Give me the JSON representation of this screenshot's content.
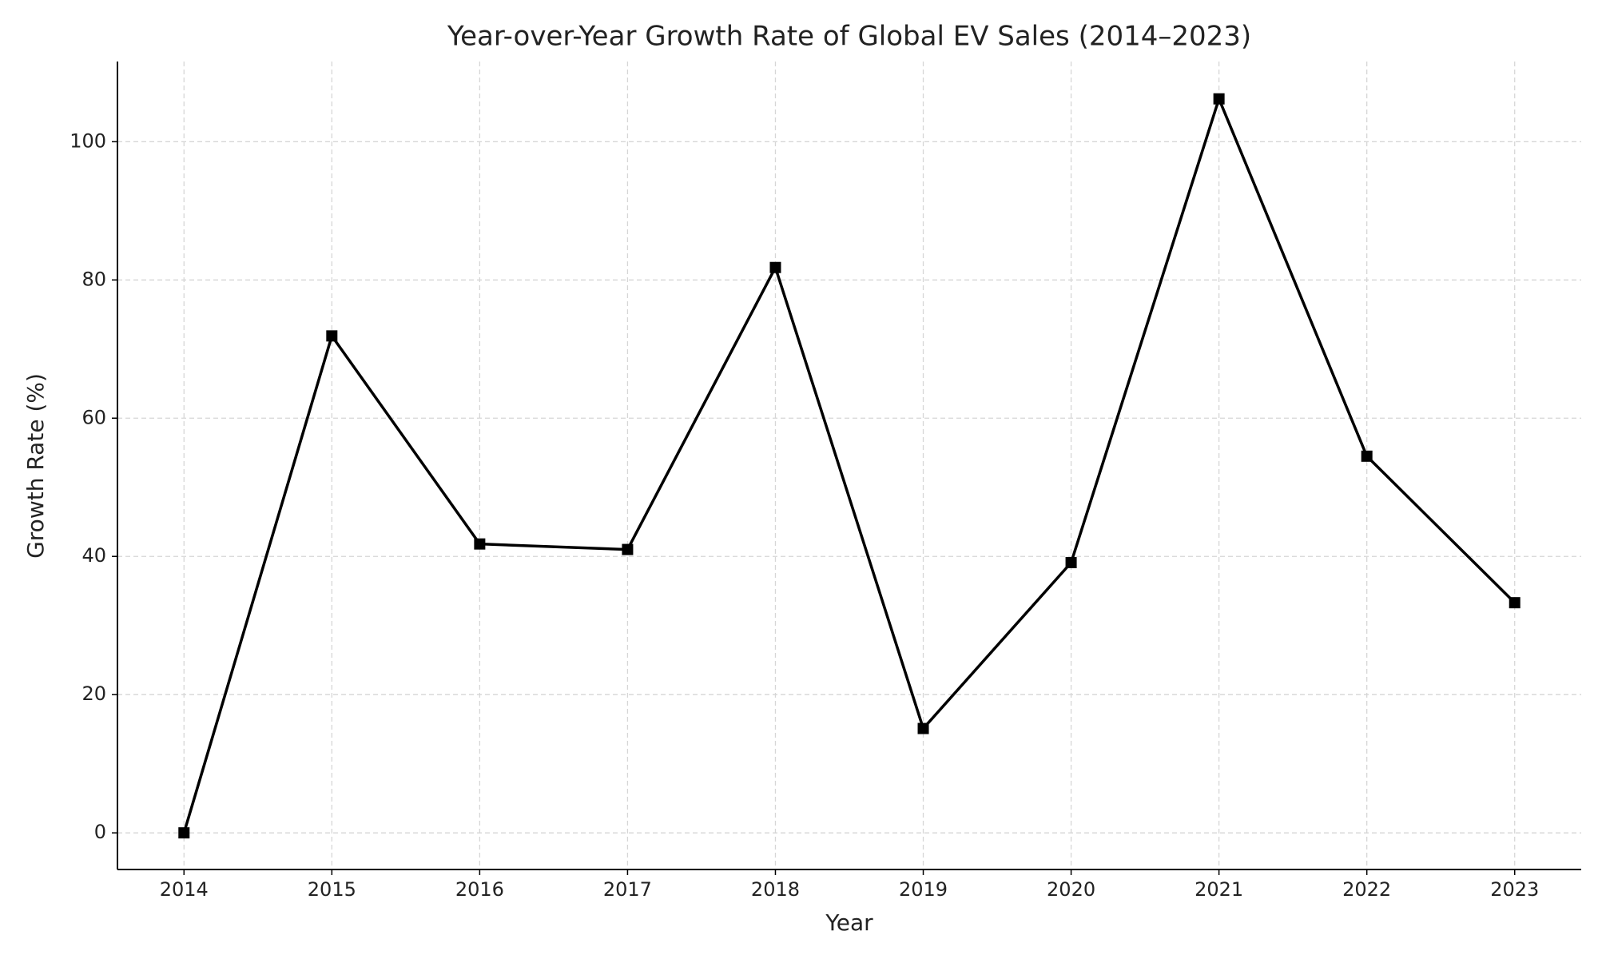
{
  "chart_data": {
    "type": "line",
    "title": "Year-over-Year Growth Rate of Global EV Sales (2014–2023)",
    "x_label": "Year",
    "y_label": "Growth Rate (%)",
    "x": [
      2014,
      2015,
      2016,
      2017,
      2018,
      2019,
      2020,
      2021,
      2022,
      2023
    ],
    "series": [
      {
        "name": "Growth Rate",
        "color": "#000000",
        "values": [
          0,
          71.9,
          41.8,
          41.0,
          81.8,
          15.1,
          39.1,
          106.2,
          54.5,
          33.3
        ]
      }
    ],
    "xlim": [
      2013.55,
      2023.45
    ],
    "xticks": [
      2014,
      2015,
      2016,
      2017,
      2018,
      2019,
      2020,
      2021,
      2022,
      2023
    ],
    "ylim": [
      -5.3,
      111.6
    ],
    "yticks": [
      0,
      20,
      40,
      60,
      80,
      100
    ],
    "grid": true
  }
}
